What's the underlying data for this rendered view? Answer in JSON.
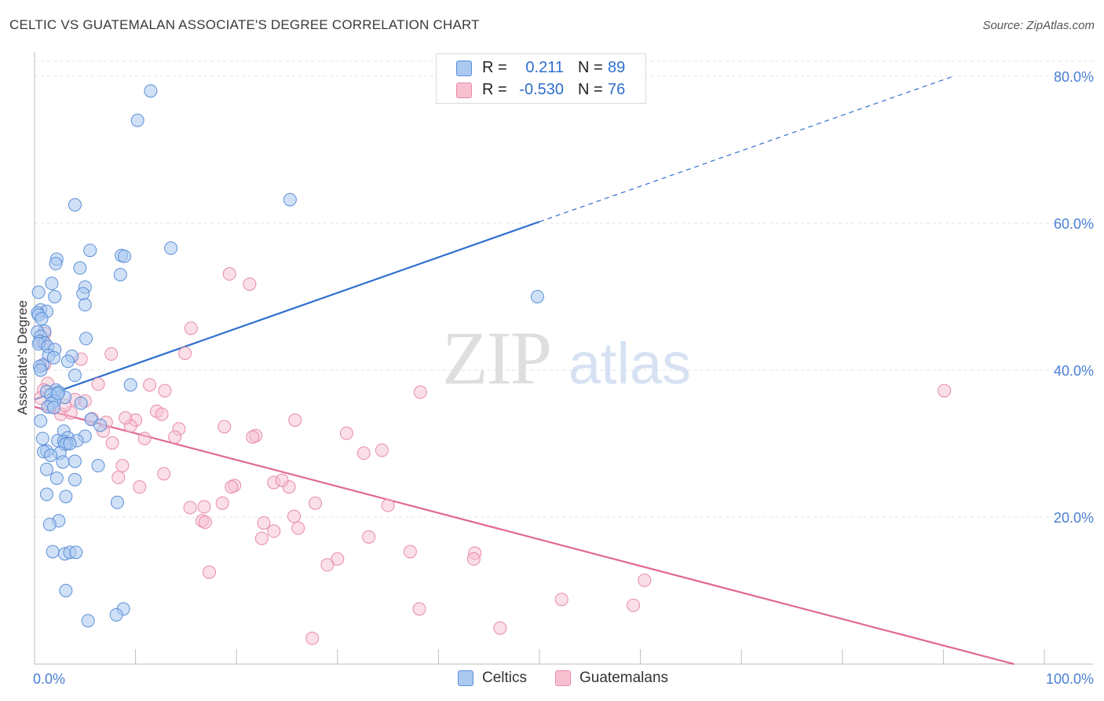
{
  "title": "CELTIC VS GUATEMALAN ASSOCIATE'S DEGREE CORRELATION CHART",
  "source": "Source: ZipAtlas.com",
  "watermark": {
    "zip": "ZIP",
    "atlas": "atlas"
  },
  "legend_top": [
    {
      "r_label": "R =",
      "r_value": "0.211",
      "n_label": "N =",
      "n_value": "89"
    },
    {
      "r_label": "R =",
      "r_value": "-0.530",
      "n_label": "N =",
      "n_value": "76"
    }
  ],
  "legend_bottom": [
    {
      "label": "Celtics"
    },
    {
      "label": "Guatemalans"
    }
  ],
  "colors": {
    "celtic_fill": "#aac8f0",
    "celtic_stroke": "#5b8fd8",
    "celtic_line": "#2f6fce",
    "guat_fill": "#f6c0d0",
    "guat_stroke": "#e88aa8",
    "guat_line": "#e06898",
    "tick_label": "#4a7fd4"
  },
  "chart_data": {
    "type": "scatter",
    "title": "CELTIC VS GUATEMALAN ASSOCIATE'S DEGREE CORRELATION CHART",
    "xlabel": "",
    "ylabel": "Associate's Degree",
    "xlim": [
      0,
      100
    ],
    "ylim": [
      0,
      80
    ],
    "x_tick_labels": [
      "0.0%",
      "100.0%"
    ],
    "y_ticks": [
      20,
      40,
      60,
      80
    ],
    "y_tick_labels": [
      "20.0%",
      "40.0%",
      "60.0%",
      "80.0%"
    ],
    "grid": true,
    "series": [
      {
        "name": "Celtics",
        "r": 0.211,
        "n": 89,
        "trend": {
          "x0": 0,
          "y0": 36.0,
          "x1": 50,
          "y1": 60.2,
          "dashed_to_x": 91,
          "dashed_to_y": 80.0
        },
        "points": [
          [
            11.5,
            78.0
          ],
          [
            10.2,
            74.0
          ],
          [
            25.3,
            63.2
          ],
          [
            4.0,
            62.5
          ],
          [
            13.5,
            56.6
          ],
          [
            5.5,
            56.3
          ],
          [
            8.6,
            55.6
          ],
          [
            8.9,
            55.5
          ],
          [
            2.2,
            55.1
          ],
          [
            2.1,
            54.5
          ],
          [
            4.5,
            53.9
          ],
          [
            8.5,
            53.0
          ],
          [
            1.7,
            51.8
          ],
          [
            5.0,
            51.3
          ],
          [
            0.4,
            50.6
          ],
          [
            4.8,
            50.4
          ],
          [
            2.0,
            50.0
          ],
          [
            5.0,
            48.9
          ],
          [
            0.6,
            48.2
          ],
          [
            1.2,
            48.0
          ],
          [
            0.3,
            47.8
          ],
          [
            0.4,
            47.5
          ],
          [
            0.7,
            47.0
          ],
          [
            1.0,
            45.3
          ],
          [
            0.3,
            45.2
          ],
          [
            0.6,
            44.6
          ],
          [
            5.1,
            44.3
          ],
          [
            0.5,
            43.9
          ],
          [
            1.0,
            43.7
          ],
          [
            0.4,
            43.6
          ],
          [
            1.3,
            43.2
          ],
          [
            2.0,
            42.8
          ],
          [
            1.4,
            42.0
          ],
          [
            3.7,
            41.9
          ],
          [
            1.9,
            41.7
          ],
          [
            3.3,
            41.2
          ],
          [
            0.8,
            40.7
          ],
          [
            0.5,
            40.5
          ],
          [
            0.6,
            40.0
          ],
          [
            4.0,
            39.3
          ],
          [
            9.5,
            38.0
          ],
          [
            2.1,
            37.3
          ],
          [
            1.2,
            37.1
          ],
          [
            2.4,
            37.0
          ],
          [
            1.6,
            36.6
          ],
          [
            3.0,
            36.3
          ],
          [
            2.0,
            35.8
          ],
          [
            1.7,
            35.5
          ],
          [
            4.6,
            35.5
          ],
          [
            1.3,
            35.0
          ],
          [
            1.9,
            34.9
          ],
          [
            5.6,
            33.3
          ],
          [
            0.6,
            33.1
          ],
          [
            6.5,
            32.5
          ],
          [
            2.9,
            31.7
          ],
          [
            5.0,
            31.0
          ],
          [
            3.3,
            30.8
          ],
          [
            0.8,
            30.7
          ],
          [
            2.3,
            30.4
          ],
          [
            4.2,
            30.4
          ],
          [
            2.9,
            30.3
          ],
          [
            3.2,
            30.0
          ],
          [
            3.0,
            29.9
          ],
          [
            1.2,
            29.0
          ],
          [
            0.9,
            28.9
          ],
          [
            2.5,
            28.7
          ],
          [
            1.6,
            28.4
          ],
          [
            2.8,
            27.5
          ],
          [
            4.0,
            27.6
          ],
          [
            6.3,
            27.0
          ],
          [
            1.2,
            26.5
          ],
          [
            2.2,
            25.3
          ],
          [
            4.0,
            25.1
          ],
          [
            1.2,
            23.1
          ],
          [
            3.1,
            22.8
          ],
          [
            8.2,
            22.0
          ],
          [
            2.4,
            19.5
          ],
          [
            1.5,
            19.0
          ],
          [
            1.8,
            15.3
          ],
          [
            3.0,
            15.0
          ],
          [
            3.5,
            15.2
          ],
          [
            4.1,
            15.2
          ],
          [
            3.1,
            10.0
          ],
          [
            8.8,
            7.5
          ],
          [
            8.1,
            6.7
          ],
          [
            5.3,
            5.9
          ],
          [
            49.8,
            50.0
          ],
          [
            3.5,
            30.0
          ],
          [
            2.3,
            36.8
          ]
        ]
      },
      {
        "name": "Guatemalans",
        "r": -0.53,
        "n": 76,
        "trend": {
          "x0": 0,
          "y0": 35.0,
          "x1": 97,
          "y1": 0.0
        },
        "points": [
          [
            19.3,
            53.1
          ],
          [
            21.3,
            51.7
          ],
          [
            15.5,
            45.7
          ],
          [
            1.0,
            45.0
          ],
          [
            0.8,
            43.9
          ],
          [
            7.6,
            42.2
          ],
          [
            14.9,
            42.3
          ],
          [
            4.6,
            41.5
          ],
          [
            1.0,
            40.8
          ],
          [
            11.4,
            38.0
          ],
          [
            6.3,
            38.1
          ],
          [
            1.3,
            38.2
          ],
          [
            12.9,
            37.2
          ],
          [
            38.2,
            37.0
          ],
          [
            90.1,
            37.2
          ],
          [
            0.9,
            37.3
          ],
          [
            4.0,
            36.0
          ],
          [
            5.0,
            35.8
          ],
          [
            0.6,
            36.2
          ],
          [
            1.5,
            35.0
          ],
          [
            12.1,
            34.4
          ],
          [
            12.6,
            34.0
          ],
          [
            2.6,
            34.0
          ],
          [
            3.6,
            34.2
          ],
          [
            5.7,
            33.4
          ],
          [
            10.0,
            33.2
          ],
          [
            7.1,
            32.9
          ],
          [
            25.8,
            33.2
          ],
          [
            18.8,
            32.3
          ],
          [
            6.8,
            31.7
          ],
          [
            14.3,
            32.0
          ],
          [
            9.5,
            32.4
          ],
          [
            21.9,
            31.1
          ],
          [
            30.9,
            31.4
          ],
          [
            10.9,
            30.7
          ],
          [
            13.9,
            30.9
          ],
          [
            21.6,
            30.9
          ],
          [
            7.7,
            30.1
          ],
          [
            34.4,
            29.1
          ],
          [
            32.6,
            28.7
          ],
          [
            8.7,
            27.0
          ],
          [
            12.8,
            25.9
          ],
          [
            8.3,
            25.4
          ],
          [
            23.7,
            24.7
          ],
          [
            19.8,
            24.3
          ],
          [
            19.5,
            24.1
          ],
          [
            25.2,
            24.1
          ],
          [
            10.4,
            24.1
          ],
          [
            27.8,
            21.9
          ],
          [
            18.6,
            21.9
          ],
          [
            35.0,
            21.6
          ],
          [
            16.8,
            21.4
          ],
          [
            15.4,
            21.3
          ],
          [
            25.7,
            20.1
          ],
          [
            22.7,
            19.2
          ],
          [
            16.6,
            19.5
          ],
          [
            16.9,
            19.3
          ],
          [
            23.7,
            18.1
          ],
          [
            26.1,
            18.5
          ],
          [
            22.5,
            17.1
          ],
          [
            33.1,
            17.3
          ],
          [
            37.2,
            15.3
          ],
          [
            43.6,
            15.1
          ],
          [
            43.5,
            14.3
          ],
          [
            30.0,
            14.3
          ],
          [
            29.0,
            13.5
          ],
          [
            17.3,
            12.5
          ],
          [
            60.4,
            11.4
          ],
          [
            52.2,
            8.8
          ],
          [
            59.3,
            8.0
          ],
          [
            38.1,
            7.5
          ],
          [
            46.1,
            4.9
          ],
          [
            27.5,
            3.5
          ],
          [
            24.5,
            25.0
          ],
          [
            9.0,
            33.5
          ],
          [
            3.0,
            35.2
          ]
        ]
      }
    ]
  }
}
